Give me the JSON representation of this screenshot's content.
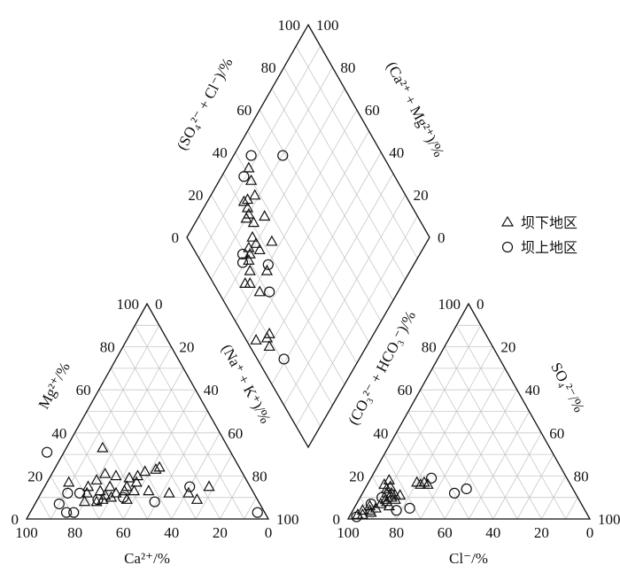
{
  "chart_data": {
    "type": "scatter",
    "subtype": "piper-diagram",
    "grid_step": 10,
    "legend": {
      "placement": "right",
      "entries": [
        {
          "name": "坝下地区",
          "marker": "triangle"
        },
        {
          "name": "坝上地区",
          "marker": "circle"
        }
      ]
    },
    "cation_triangle": {
      "bottom_axis_label": "Ca²⁺/%",
      "left_axis_label": "Mg²⁺/%",
      "right_axis_label": "(Na⁺ + K⁺)/%",
      "ticks": [
        "0",
        "20",
        "40",
        "60",
        "80",
        "100"
      ],
      "series": [
        {
          "name": "坝下地区",
          "points": [
            {
              "ca": 52,
              "mg": 33
            },
            {
              "ca": 40,
              "mg": 22
            },
            {
              "ca": 35,
              "mg": 23
            },
            {
              "ca": 33,
              "mg": 24
            },
            {
              "ca": 62,
              "mg": 18
            },
            {
              "ca": 57,
              "mg": 21
            },
            {
              "ca": 53,
              "mg": 20
            },
            {
              "ca": 48,
              "mg": 19
            },
            {
              "ca": 44,
              "mg": 20
            },
            {
              "ca": 74,
              "mg": 17
            },
            {
              "ca": 67,
              "mg": 15
            },
            {
              "ca": 63,
              "mg": 13
            },
            {
              "ca": 58,
              "mg": 15
            },
            {
              "ca": 53,
              "mg": 13
            },
            {
              "ca": 49,
              "mg": 13
            },
            {
              "ca": 69,
              "mg": 12
            },
            {
              "ca": 57,
              "mg": 12
            },
            {
              "ca": 43,
              "mg": 13
            },
            {
              "ca": 46,
              "mg": 17
            },
            {
              "ca": 51,
              "mg": 15
            },
            {
              "ca": 60,
              "mg": 10
            },
            {
              "ca": 54,
              "mg": 9
            },
            {
              "ca": 72,
              "mg": 8
            },
            {
              "ca": 67,
              "mg": 8
            },
            {
              "ca": 35,
              "mg": 12
            },
            {
              "ca": 27,
              "mg": 12
            },
            {
              "ca": 25,
              "mg": 9
            },
            {
              "ca": 17,
              "mg": 15
            },
            {
              "ca": 62,
              "mg": 11
            },
            {
              "ca": 64,
              "mg": 9
            }
          ]
        },
        {
          "name": "坝上地区",
          "points": [
            {
              "ca": 76,
              "mg": 31
            },
            {
              "ca": 77,
              "mg": 12
            },
            {
              "ca": 72,
              "mg": 12
            },
            {
              "ca": 83,
              "mg": 7
            },
            {
              "ca": 82,
              "mg": 3
            },
            {
              "ca": 79,
              "mg": 3
            },
            {
              "ca": 55,
              "mg": 10
            },
            {
              "ca": 43,
              "mg": 8
            },
            {
              "ca": 25,
              "mg": 15
            },
            {
              "ca": 3,
              "mg": 3
            },
            {
              "ca": 66,
              "mg": 9
            }
          ]
        }
      ]
    },
    "anion_triangle": {
      "bottom_axis_label": "Cl⁻/%",
      "left_axis_label": "(CO₃²⁻ + HCO₃⁻)/%",
      "right_axis_label": "SO₄²⁻/%",
      "ticks": [
        "0",
        "20",
        "40",
        "60",
        "80",
        "100"
      ],
      "series": [
        {
          "name": "坝下地区",
          "points": [
            {
              "cl": 3,
              "so4": 2
            },
            {
              "cl": 5,
              "so4": 2
            },
            {
              "cl": 4,
              "so4": 4
            },
            {
              "cl": 7,
              "so4": 4
            },
            {
              "cl": 8,
              "so4": 3
            },
            {
              "cl": 9,
              "so4": 5
            },
            {
              "cl": 6,
              "so4": 6
            },
            {
              "cl": 10,
              "so4": 7
            },
            {
              "cl": 12,
              "so4": 8
            },
            {
              "cl": 13,
              "so4": 10
            },
            {
              "cl": 11,
              "so4": 9
            },
            {
              "cl": 14,
              "so4": 11
            },
            {
              "cl": 15,
              "so4": 9
            },
            {
              "cl": 12,
              "so4": 12
            },
            {
              "cl": 10,
              "so4": 12
            },
            {
              "cl": 9,
              "so4": 14
            },
            {
              "cl": 10,
              "so4": 15
            },
            {
              "cl": 7,
              "so4": 16
            },
            {
              "cl": 8,
              "so4": 18
            },
            {
              "cl": 20,
              "so4": 17
            },
            {
              "cl": 23,
              "so4": 17
            },
            {
              "cl": 25,
              "so4": 16
            },
            {
              "cl": 22,
              "so4": 16
            },
            {
              "cl": 16,
              "so4": 11
            },
            {
              "cl": 14,
              "so4": 6
            }
          ]
        },
        {
          "name": "坝上地区",
          "points": [
            {
              "cl": 3,
              "so4": 1
            },
            {
              "cl": 6,
              "so4": 7
            },
            {
              "cl": 9,
              "so4": 10
            },
            {
              "cl": 18,
              "so4": 4
            },
            {
              "cl": 23,
              "so4": 5
            },
            {
              "cl": 38,
              "so4": 12
            },
            {
              "cl": 42,
              "so4": 14
            },
            {
              "cl": 25,
              "so4": 19
            }
          ]
        }
      ]
    },
    "diamond": {
      "upper_left_axis_label": "(SO₄²⁻ + Cl⁻)/%",
      "upper_right_axis_label": "(Ca²⁺ + Mg²⁺)/%",
      "lower_left_axis_label": "(Na⁺ + K⁺)/%",
      "lower_right_axis_label": "(CO₃²⁻ + HCO₃⁻)/%",
      "ticks": [
        "0",
        "20",
        "40",
        "60",
        "80",
        "100"
      ],
      "series": [
        {
          "name": "坝下地区",
          "points": [
            {
              "ts": 42,
              "tc": 91
            },
            {
              "ts": 40,
              "tc": 87
            },
            {
              "ts": 38,
              "tc": 82
            },
            {
              "ts": 37,
              "tc": 73
            },
            {
              "ts": 34,
              "tc": 64
            },
            {
              "ts": 34,
              "tc": 84
            },
            {
              "ts": 32,
              "tc": 85
            },
            {
              "ts": 32,
              "tc": 82
            },
            {
              "ts": 31,
              "tc": 80
            },
            {
              "ts": 31,
              "tc": 76
            },
            {
              "ts": 29,
              "tc": 80
            },
            {
              "ts": 27,
              "tc": 73
            },
            {
              "ts": 27,
              "tc": 70
            },
            {
              "ts": 27,
              "tc": 67
            },
            {
              "ts": 25,
              "tc": 59
            },
            {
              "ts": 23,
              "tc": 72
            },
            {
              "ts": 22,
              "tc": 70
            },
            {
              "ts": 20,
              "tc": 69
            },
            {
              "ts": 18,
              "tc": 66
            },
            {
              "ts": 17,
              "tc": 57
            },
            {
              "ts": 15,
              "tc": 63
            },
            {
              "ts": 13,
              "tc": 65
            },
            {
              "ts": 11,
              "tc": 43
            },
            {
              "ts": 9,
              "tc": 43
            },
            {
              "ts": 8,
              "tc": 40
            },
            {
              "ts": 4,
              "tc": 47
            }
          ]
        },
        {
          "name": "坝上地区",
          "points": [
            {
              "ts": 59,
              "tc": 80
            },
            {
              "ts": 46,
              "tc": 93
            },
            {
              "ts": 38,
              "tc": 91
            },
            {
              "ts": 27,
              "tc": 60
            },
            {
              "ts": 21,
              "tc": 53
            },
            {
              "ts": 19,
              "tc": 73
            },
            {
              "ts": 17,
              "tc": 71
            },
            {
              "ts": 11,
              "tc": 31
            }
          ]
        }
      ]
    }
  }
}
